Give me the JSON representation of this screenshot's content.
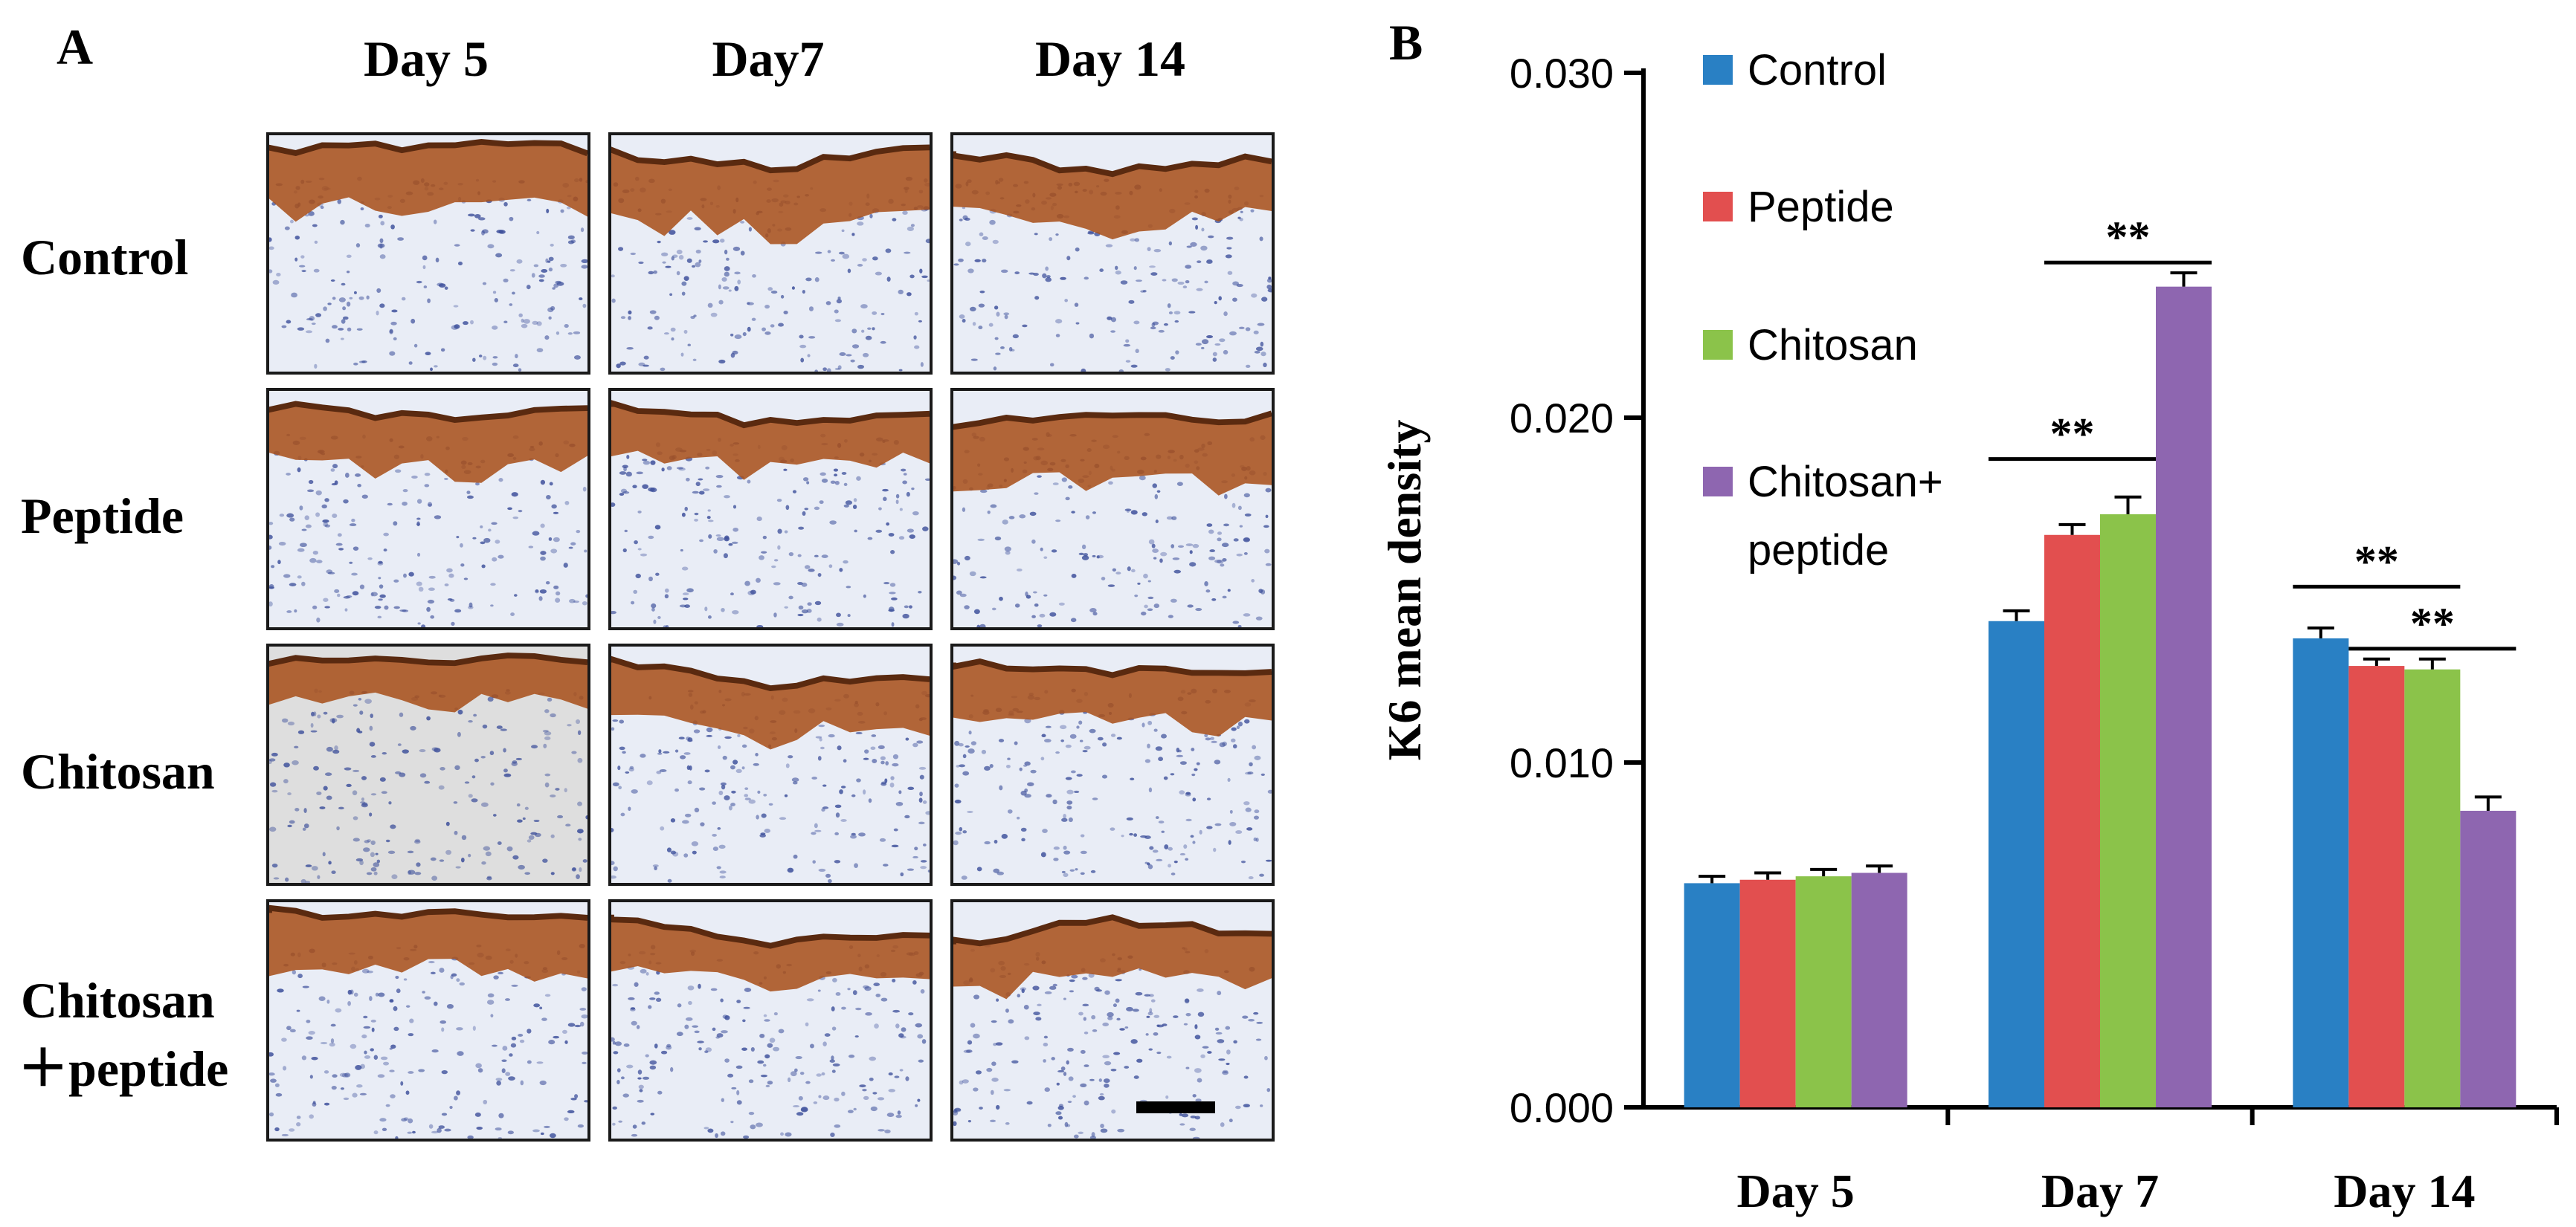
{
  "panel_a": {
    "letter": "A",
    "columns": [
      "Day 5",
      "Day7",
      "Day 14"
    ],
    "rows": [
      {
        "label": "Control",
        "label2": ""
      },
      {
        "label": "Peptide",
        "label2": ""
      },
      {
        "label": "Chitosan",
        "label2": ""
      },
      {
        "label": "Chitosan",
        "label2": "＋peptide"
      }
    ],
    "colors": {
      "stain_brown": "#a8521e",
      "stain_dark": "#5a2a10",
      "tissue_bg": "#e9edf6",
      "nuclei": "#3b4e9a"
    }
  },
  "chart_data": {
    "panel_letter": "B",
    "type": "bar",
    "title": "",
    "xlabel": "",
    "ylabel": "K6 mean density",
    "ylim": [
      0,
      0.03
    ],
    "yticks": [
      "0.000",
      "0.010",
      "0.020",
      "0.030"
    ],
    "ytick_values": [
      0,
      0.01,
      0.02,
      0.03
    ],
    "categories": [
      "Day 5",
      "Day 7",
      "Day 14"
    ],
    "series": [
      {
        "name": "Control",
        "color": "#2980c4",
        "values": [
          0.0065,
          0.0141,
          0.0136
        ],
        "errors": [
          0.0002,
          0.0003,
          0.0003
        ]
      },
      {
        "name": "Peptide",
        "color": "#e24f4f",
        "values": [
          0.0066,
          0.0166,
          0.0128
        ],
        "errors": [
          0.0002,
          0.0003,
          0.0002
        ]
      },
      {
        "name": "Chitosan",
        "color": "#8bc34a",
        "values": [
          0.0067,
          0.0172,
          0.0127
        ],
        "errors": [
          0.0002,
          0.0005,
          0.0003
        ]
      },
      {
        "name": "Chitosan+\npeptide",
        "color": "#8e66b0",
        "values": [
          0.0068,
          0.0238,
          0.0086
        ],
        "errors": [
          0.0002,
          0.0004,
          0.0004
        ]
      }
    ],
    "legend_position": "top-left",
    "annotations": [
      {
        "text": "**",
        "category": 1,
        "from_series": 3,
        "to_series": 1,
        "y": 0.0245
      },
      {
        "text": "**",
        "category": 1,
        "from_series": 0,
        "to_series": 2,
        "y": 0.0188
      },
      {
        "text": "**",
        "category": 2,
        "from_series": 0,
        "to_series": 2,
        "y": 0.0151
      },
      {
        "text": "**",
        "category": 2,
        "from_series": 1,
        "to_series": 3,
        "y": 0.0133
      }
    ]
  }
}
